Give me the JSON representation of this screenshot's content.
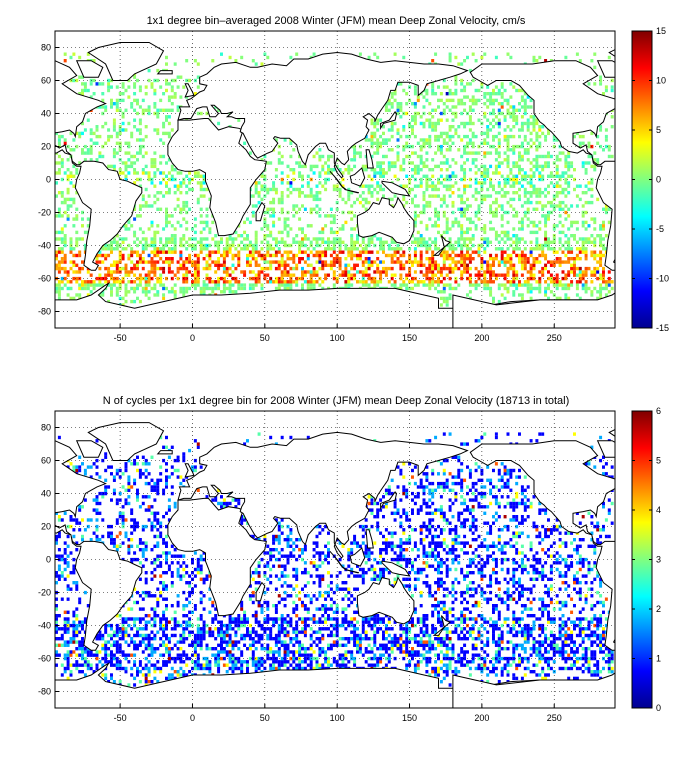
{
  "chart_data": [
    {
      "type": "heatmap",
      "title": "1x1 degree bin–averaged 2008 Winter (JFM) mean Deep Zonal Velocity, cm/s",
      "xlim": [
        -95,
        292
      ],
      "ylim": [
        -90,
        90
      ],
      "xticks": [
        -50,
        0,
        50,
        100,
        150,
        200,
        250
      ],
      "yticks": [
        80,
        60,
        40,
        20,
        0,
        -20,
        -40,
        -60,
        -80
      ],
      "colorbar": {
        "min": -15,
        "max": 15,
        "ticks": [
          15,
          10,
          5,
          0,
          -5,
          -10,
          -15
        ],
        "colormap": "jet"
      },
      "grid": true,
      "seed": 7,
      "values_summary": "sparse 1x1 degree bins; mostly near 0 (cyan-green), strong eastward (red) bands along the Antarctic Circumpolar Current near -50 to -60 latitude"
    },
    {
      "type": "heatmap",
      "title": "N of cycles per 1x1 degree bin for 2008 Winter (JFM) mean Deep Zonal Velocity (18713 in total)",
      "xlim": [
        -95,
        292
      ],
      "ylim": [
        -90,
        90
      ],
      "xticks": [
        -50,
        0,
        50,
        100,
        150,
        200,
        250
      ],
      "yticks": [
        80,
        60,
        40,
        20,
        0,
        -20,
        -40,
        -60,
        -80
      ],
      "colorbar": {
        "min": 0,
        "max": 6,
        "ticks": [
          6,
          5,
          4,
          3,
          2,
          1,
          0
        ],
        "colormap": "jet"
      },
      "grid": true,
      "seed": 19,
      "values_summary": "sparse bins, most with 1 cycle (blue), some 2-6 cycles in subtropical gyres"
    }
  ],
  "colors": {
    "axis": "#000000",
    "grid": "#000000",
    "background": "#ffffff"
  }
}
